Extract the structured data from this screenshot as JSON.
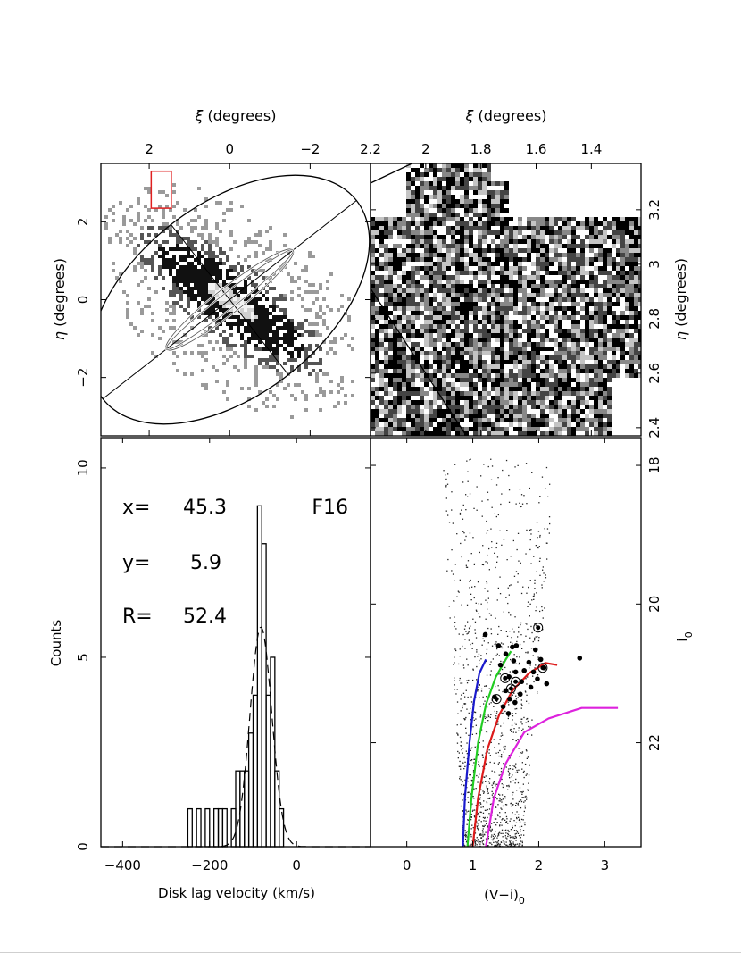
{
  "chart_data": [
    {
      "panel": "overview-map",
      "type": "heatmap",
      "xlabel_prefix": "ξ",
      "xlabel_suffix": "(degrees)",
      "ylabel_prefix": "η",
      "ylabel_suffix": "(degrees)",
      "xlim": [
        3.2,
        -3.5
      ],
      "ylim": [
        -3.5,
        3.5
      ],
      "xticks": [
        "2",
        "0",
        "−2"
      ],
      "xtick_values": [
        2,
        0,
        -2
      ],
      "yticks": [
        "2",
        "0",
        "−2"
      ],
      "ytick_values": [
        2,
        0,
        -2
      ],
      "field_box": {
        "x": [
          1.95,
          1.45
        ],
        "y": [
          2.35,
          3.3
        ],
        "color": "#e02020"
      },
      "outer_ellipse": {
        "center": [
          0,
          0
        ],
        "semi_major_deg": 4.0,
        "semi_minor_deg": 2.45,
        "position_angle_deg": 38
      },
      "inner_ellipses": [
        {
          "center": [
            0,
            0
          ],
          "semi_major_deg": 2.0,
          "semi_minor_deg": 0.33,
          "position_angle_deg": 38
        },
        {
          "center": [
            0,
            0
          ],
          "semi_major_deg": 2.0,
          "semi_minor_deg": 0.2,
          "position_angle_deg": 38
        }
      ]
    },
    {
      "panel": "field-zoom",
      "type": "heatmap",
      "xlabel_prefix": "ξ",
      "xlabel_suffix": "(degrees)",
      "ylabel_prefix": "η",
      "ylabel_suffix": "(degrees)",
      "xlim": [
        2.2,
        1.22
      ],
      "ylim": [
        2.37,
        3.37
      ],
      "xticks": [
        "2.2",
        "2",
        "1.8",
        "1.6",
        "1.4"
      ],
      "xtick_values": [
        2.2,
        2.0,
        1.8,
        1.6,
        1.4
      ],
      "yticks": [
        "2.4",
        "2.6",
        "2.8",
        "3",
        "3.2"
      ],
      "ytick_values": [
        2.4,
        2.6,
        2.8,
        3.0,
        3.2
      ]
    },
    {
      "panel": "velocity-histogram",
      "type": "bar",
      "xlabel": "Disk lag velocity (km/s)",
      "ylabel": "Counts",
      "xlim": [
        -450,
        170
      ],
      "ylim": [
        0,
        10.8
      ],
      "xticks": [
        "−400",
        "−200",
        "0"
      ],
      "xtick_values": [
        -400,
        -200,
        0
      ],
      "yticks": [
        "0",
        "5",
        "10"
      ],
      "ytick_values": [
        0,
        5,
        10
      ],
      "bin_width": 10,
      "bins": [
        {
          "x": -245,
          "count": 1
        },
        {
          "x": -225,
          "count": 1
        },
        {
          "x": -205,
          "count": 1
        },
        {
          "x": -185,
          "count": 1
        },
        {
          "x": -175,
          "count": 1
        },
        {
          "x": -165,
          "count": 1
        },
        {
          "x": -145,
          "count": 1
        },
        {
          "x": -135,
          "count": 2
        },
        {
          "x": -125,
          "count": 2
        },
        {
          "x": -115,
          "count": 2
        },
        {
          "x": -105,
          "count": 3
        },
        {
          "x": -95,
          "count": 4
        },
        {
          "x": -85,
          "count": 9
        },
        {
          "x": -75,
          "count": 8
        },
        {
          "x": -65,
          "count": 4
        },
        {
          "x": -55,
          "count": 5
        },
        {
          "x": -45,
          "count": 2
        },
        {
          "x": -35,
          "count": 1
        }
      ],
      "gaussian_fit": {
        "mean": -82,
        "sigma": 25,
        "peak": 5.8
      },
      "annotations": {
        "x_label": "x=",
        "x_value": "45.3",
        "y_label": "y=",
        "y_value": "5.9",
        "r_label": "R=",
        "r_value": "52.4",
        "field": "F16"
      }
    },
    {
      "panel": "color-magnitude-diagram",
      "type": "scatter",
      "xlabel_main": "(V−i)",
      "xlabel_sub": "0",
      "ylabel_main": "i",
      "ylabel_sub": "0",
      "xlim": [
        -0.55,
        3.55
      ],
      "ylim": [
        23.5,
        17.6
      ],
      "xticks": [
        "0",
        "1",
        "2",
        "3"
      ],
      "xtick_values": [
        0,
        1,
        2,
        3
      ],
      "yticks": [
        "18",
        "20",
        "22"
      ],
      "ytick_values": [
        18,
        20,
        22
      ],
      "isochrones": [
        {
          "color": "#1a1acc",
          "points": [
            [
              0.85,
              23.5
            ],
            [
              0.88,
              22.8
            ],
            [
              0.95,
              22.0
            ],
            [
              1.02,
              21.4
            ],
            [
              1.1,
              21.0
            ],
            [
              1.2,
              20.8
            ]
          ]
        },
        {
          "color": "#22cc22",
          "points": [
            [
              0.92,
              23.5
            ],
            [
              0.98,
              22.8
            ],
            [
              1.08,
              22.0
            ],
            [
              1.2,
              21.45
            ],
            [
              1.35,
              21.05
            ],
            [
              1.5,
              20.8
            ],
            [
              1.58,
              20.68
            ]
          ]
        },
        {
          "color": "#dd1a1a",
          "points": [
            [
              1.0,
              23.5
            ],
            [
              1.08,
              22.8
            ],
            [
              1.22,
              22.1
            ],
            [
              1.4,
              21.6
            ],
            [
              1.6,
              21.25
            ],
            [
              1.85,
              21.0
            ],
            [
              2.1,
              20.85
            ],
            [
              2.28,
              20.88
            ]
          ]
        },
        {
          "color": "#dd22dd",
          "points": [
            [
              1.2,
              23.5
            ],
            [
              1.32,
              22.8
            ],
            [
              1.5,
              22.3
            ],
            [
              1.78,
              21.85
            ],
            [
              2.15,
              21.65
            ],
            [
              2.65,
              21.5
            ],
            [
              3.2,
              21.5
            ]
          ]
        }
      ],
      "members": [
        [
          1.19,
          20.44
        ],
        [
          1.39,
          20.6
        ],
        [
          1.6,
          20.62
        ],
        [
          1.5,
          20.72
        ],
        [
          1.62,
          20.82
        ],
        [
          1.85,
          20.84
        ],
        [
          1.42,
          20.88
        ],
        [
          1.78,
          20.96
        ],
        [
          1.92,
          20.98
        ],
        [
          2.08,
          20.92
        ],
        [
          1.65,
          20.98
        ],
        [
          1.55,
          21.05
        ],
        [
          1.98,
          21.08
        ],
        [
          1.74,
          21.12
        ],
        [
          1.88,
          21.2
        ],
        [
          2.12,
          21.15
        ],
        [
          1.33,
          21.34
        ],
        [
          1.56,
          21.37
        ],
        [
          1.64,
          21.42
        ],
        [
          1.46,
          21.48
        ],
        [
          1.54,
          21.58
        ],
        [
          1.66,
          20.6
        ],
        [
          1.95,
          20.66
        ],
        [
          2.03,
          20.8
        ],
        [
          2.62,
          20.78
        ],
        [
          1.5,
          21.25
        ],
        [
          1.72,
          21.3
        ]
      ],
      "ringed_members": [
        [
          1.99,
          20.34
        ],
        [
          1.49,
          21.07
        ],
        [
          1.65,
          21.12
        ],
        [
          1.36,
          21.37
        ],
        [
          2.06,
          20.92
        ],
        [
          1.58,
          21.22
        ]
      ]
    }
  ]
}
